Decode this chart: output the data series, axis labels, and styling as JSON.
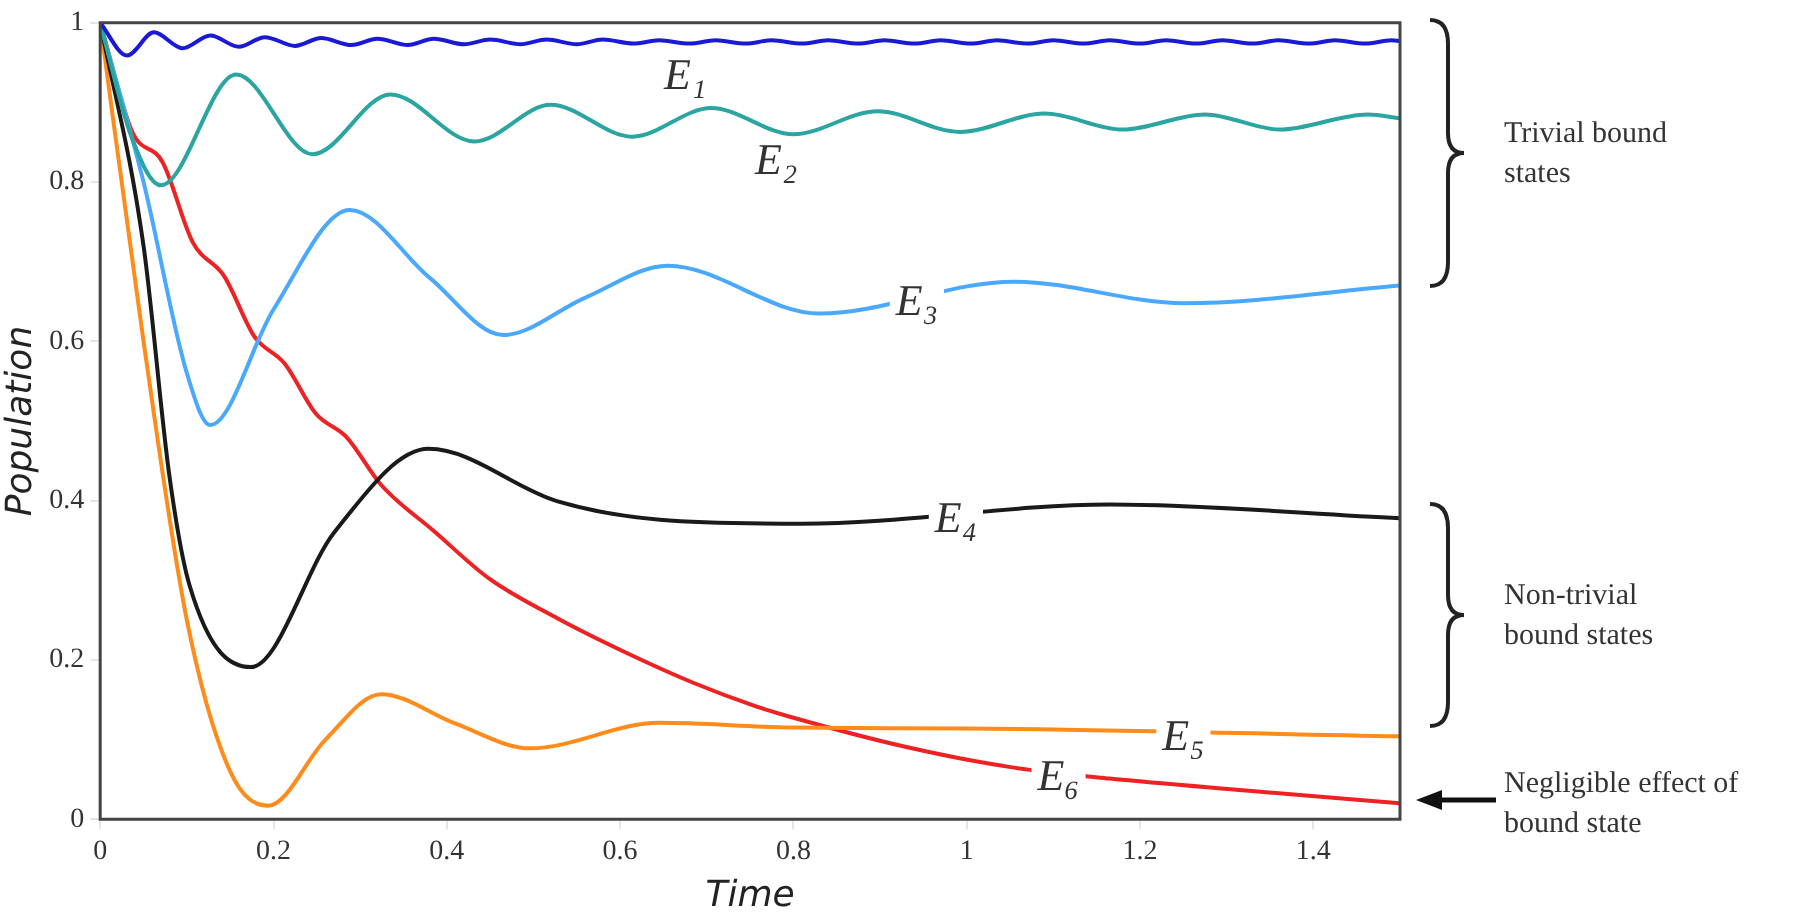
{
  "chart_data": {
    "type": "line",
    "xlabel": "Time",
    "ylabel": "Population",
    "xlim": [
      0,
      1.5
    ],
    "xticks": [
      0,
      0.2,
      0.4,
      0.6,
      0.8,
      1,
      1.2,
      1.4
    ],
    "ylim": [
      0,
      1
    ],
    "yticks": [
      0,
      0.2,
      0.4,
      0.6,
      0.8,
      1
    ],
    "grid": false,
    "legend": false,
    "marker": "none",
    "line_style": "solid",
    "annotations": [
      "Trivial bound states",
      "Non-trivial bound states",
      "Negligible effect of bound state"
    ],
    "series": [
      {
        "name": "E₁",
        "color": "#1a1ad6",
        "x": [
          0,
          0.031,
          0.062,
          0.095,
          0.127,
          0.16,
          0.19,
          0.225,
          0.255,
          0.29,
          0.32,
          0.355,
          0.385,
          0.42,
          0.45,
          0.485,
          0.515,
          0.55,
          0.58,
          0.615,
          0.645,
          0.68,
          0.71,
          0.745,
          0.775,
          0.81,
          0.84,
          0.875,
          0.905,
          0.94,
          0.97,
          1.005,
          1.035,
          1.07,
          1.1,
          1.135,
          1.165,
          1.2,
          1.23,
          1.265,
          1.295,
          1.33,
          1.36,
          1.395,
          1.425,
          1.46,
          1.49,
          1.5
        ],
        "values": [
          1,
          0.959,
          0.988,
          0.968,
          0.984,
          0.97,
          0.982,
          0.971,
          0.981,
          0.972,
          0.98,
          0.972,
          0.98,
          0.973,
          0.979,
          0.973,
          0.979,
          0.973,
          0.979,
          0.974,
          0.978,
          0.974,
          0.978,
          0.974,
          0.978,
          0.974,
          0.978,
          0.974,
          0.978,
          0.974,
          0.978,
          0.974,
          0.978,
          0.974,
          0.978,
          0.974,
          0.978,
          0.974,
          0.978,
          0.974,
          0.978,
          0.974,
          0.978,
          0.974,
          0.978,
          0.974,
          0.978,
          0.977
        ]
      },
      {
        "name": "E₂",
        "color": "#2aa5a0",
        "x": [
          0,
          0.035,
          0.07,
          0.157,
          0.245,
          0.335,
          0.432,
          0.52,
          0.614,
          0.705,
          0.8,
          0.897,
          0.992,
          1.09,
          1.18,
          1.275,
          1.361,
          1.463,
          1.5
        ],
        "values": [
          1,
          0.86,
          0.796,
          0.935,
          0.835,
          0.91,
          0.851,
          0.897,
          0.857,
          0.893,
          0.86,
          0.889,
          0.863,
          0.886,
          0.866,
          0.885,
          0.866,
          0.885,
          0.88
        ]
      },
      {
        "name": "E₃",
        "color": "#4aa8ff",
        "x": [
          0,
          0.05,
          0.1,
          0.127,
          0.2,
          0.288,
          0.38,
          0.465,
          0.56,
          0.655,
          0.83,
          1.055,
          1.251,
          1.5
        ],
        "values": [
          1,
          0.8,
          0.56,
          0.495,
          0.64,
          0.765,
          0.68,
          0.608,
          0.655,
          0.695,
          0.635,
          0.675,
          0.648,
          0.67
        ]
      },
      {
        "name": "E₄",
        "color": "#1a1a1a",
        "x": [
          0,
          0.05,
          0.08,
          0.103,
          0.174,
          0.27,
          0.379,
          0.528,
          0.646,
          0.81,
          1.165,
          1.5
        ],
        "values": [
          1,
          0.72,
          0.43,
          0.294,
          0.191,
          0.36,
          0.465,
          0.399,
          0.376,
          0.371,
          0.395,
          0.378
        ]
      },
      {
        "name": "E₅",
        "color": "#ff8c1a",
        "x": [
          0,
          0.05,
          0.1,
          0.15,
          0.194,
          0.26,
          0.324,
          0.41,
          0.496,
          0.645,
          0.8,
          1,
          1.5
        ],
        "values": [
          1,
          0.6,
          0.25,
          0.06,
          0.017,
          0.1,
          0.157,
          0.12,
          0.089,
          0.121,
          0.115,
          0.114,
          0.104
        ]
      },
      {
        "name": "E₆",
        "color": "#ee2222",
        "x": [
          0,
          0.037,
          0.072,
          0.107,
          0.143,
          0.178,
          0.213,
          0.249,
          0.284,
          0.324,
          0.386,
          0.449,
          0.528,
          0.607,
          0.685,
          0.756,
          0.795,
          0.929,
          1.047,
          1.165,
          1.322,
          1.5
        ],
        "values": [
          1,
          0.863,
          0.825,
          0.724,
          0.682,
          0.606,
          0.572,
          0.509,
          0.48,
          0.42,
          0.361,
          0.302,
          0.252,
          0.209,
          0.171,
          0.142,
          0.129,
          0.091,
          0.066,
          0.051,
          0.036,
          0.02
        ]
      }
    ]
  }
}
